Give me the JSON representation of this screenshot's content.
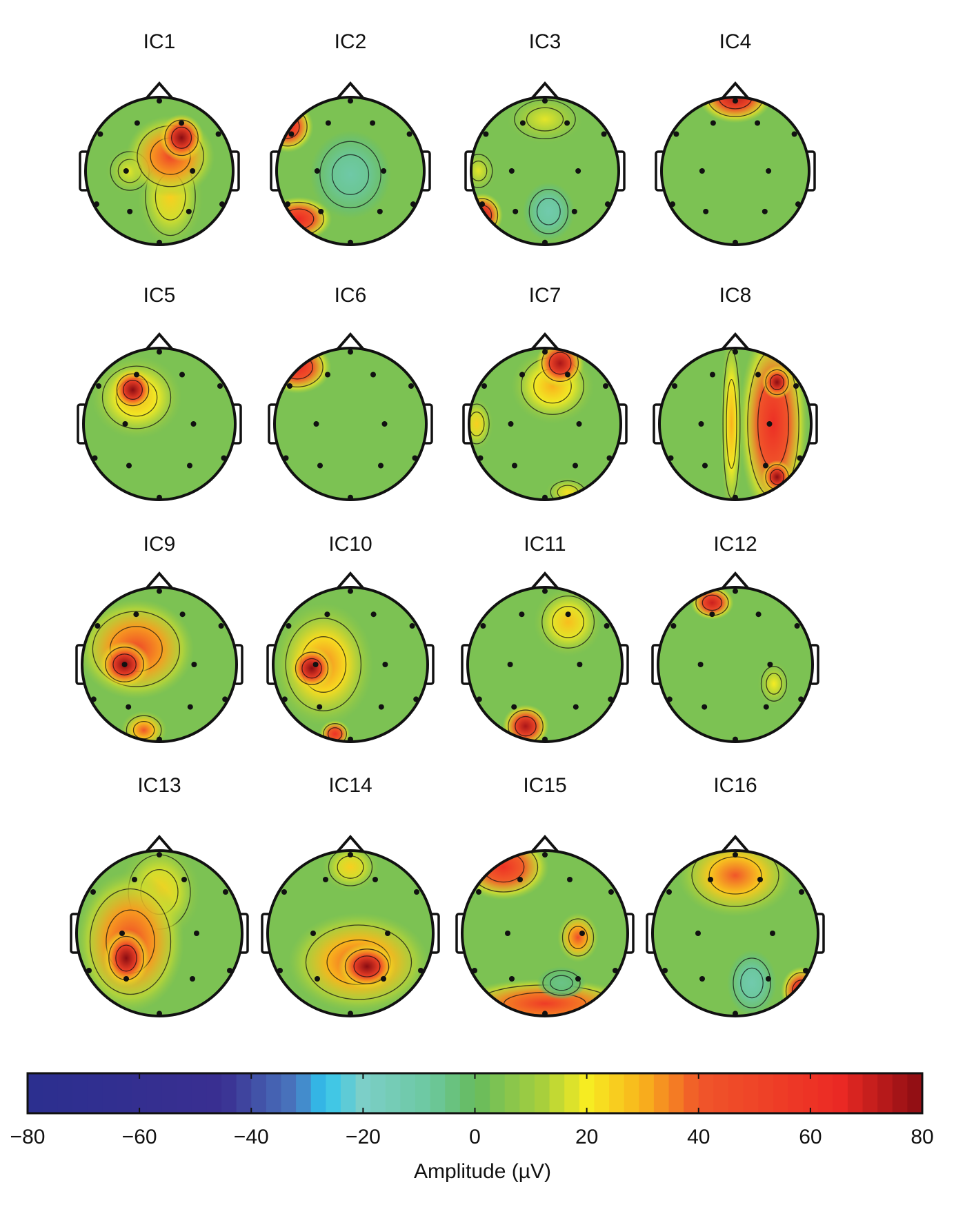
{
  "chart_data": {
    "type": "heatmap",
    "subtype": "scalp topographic maps",
    "panels": [
      "IC1",
      "IC2",
      "IC3",
      "IC4",
      "IC5",
      "IC6",
      "IC7",
      "IC8",
      "IC9",
      "IC10",
      "IC11",
      "IC12",
      "IC13",
      "IC14",
      "IC15",
      "IC16"
    ],
    "grid": {
      "rows": 4,
      "cols": 4
    },
    "colorbar": {
      "label": "Amplitude (µV)",
      "range": [
        -80,
        80
      ],
      "ticks": [
        "−80",
        "−60",
        "−40",
        "−20",
        "0",
        "20",
        "40",
        "60",
        "80"
      ],
      "orientation": "horizontal",
      "placement": "bottom",
      "colormap": [
        "#2b2f8f",
        "#3a2f91",
        "#3a3a9a",
        "#4a78c0",
        "#2ec4ee",
        "#7ccfc8",
        "#6cc8a0",
        "#66bb5e",
        "#a8cf3c",
        "#f6ec22",
        "#f9b21c",
        "#f0562a",
        "#ec2a24",
        "#8a0c12"
      ]
    }
  }
}
